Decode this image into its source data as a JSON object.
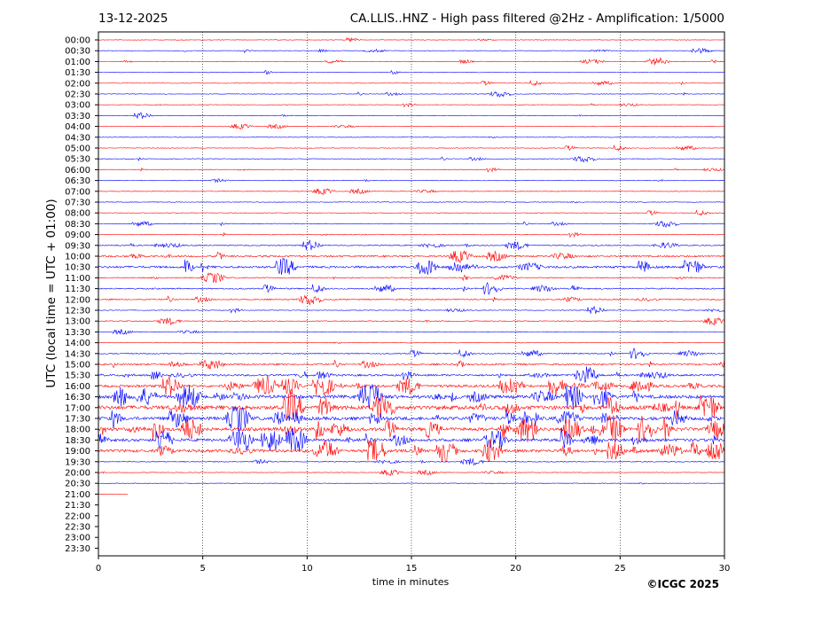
{
  "chart_data": {
    "type": "line",
    "title_left": "13-12-2025",
    "title_right": "CA.LLIS..HNZ - High pass filtered @2Hz - Amplification: 1/5000",
    "xlabel": "time in minutes",
    "ylabel": "UTC (local time = UTC + 01:00)",
    "copyright": "©ICGC 2025",
    "xlim": [
      0,
      30
    ],
    "x_ticks": [
      "0",
      "5",
      "10",
      "15",
      "20",
      "25",
      "30"
    ],
    "x_tick_values": [
      0,
      5,
      10,
      15,
      20,
      25,
      30
    ],
    "grid": "vertical dotted at 5 min",
    "trace_colors": [
      "#ff0000",
      "#0000ff"
    ],
    "rows": [
      {
        "label": "00:00",
        "level": 0.02,
        "end": 30
      },
      {
        "label": "00:30",
        "level": 0.02,
        "end": 30
      },
      {
        "label": "01:00",
        "level": 0.03,
        "end": 30
      },
      {
        "label": "01:30",
        "level": 0.02,
        "end": 30
      },
      {
        "label": "02:00",
        "level": 0.02,
        "end": 30
      },
      {
        "label": "02:30",
        "level": 0.02,
        "end": 30
      },
      {
        "label": "03:00",
        "level": 0.03,
        "end": 30
      },
      {
        "label": "03:30",
        "level": 0.02,
        "end": 30
      },
      {
        "label": "04:00",
        "level": 0.02,
        "end": 30
      },
      {
        "label": "04:30",
        "level": 0.03,
        "end": 30
      },
      {
        "label": "05:00",
        "level": 0.04,
        "end": 30
      },
      {
        "label": "05:30",
        "level": 0.04,
        "end": 30
      },
      {
        "label": "06:00",
        "level": 0.05,
        "end": 30
      },
      {
        "label": "06:30",
        "level": 0.04,
        "end": 30
      },
      {
        "label": "07:00",
        "level": 0.05,
        "end": 30
      },
      {
        "label": "07:30",
        "level": 0.05,
        "end": 30
      },
      {
        "label": "08:00",
        "level": 0.04,
        "end": 30
      },
      {
        "label": "08:30",
        "level": 0.06,
        "end": 30
      },
      {
        "label": "09:00",
        "level": 0.08,
        "end": 30
      },
      {
        "label": "09:30",
        "level": 0.15,
        "end": 30
      },
      {
        "label": "10:00",
        "level": 0.3,
        "end": 30
      },
      {
        "label": "10:30",
        "level": 0.4,
        "end": 30
      },
      {
        "label": "11:00",
        "level": 0.15,
        "end": 30
      },
      {
        "label": "11:30",
        "level": 0.2,
        "end": 30
      },
      {
        "label": "12:00",
        "level": 0.2,
        "end": 30
      },
      {
        "label": "12:30",
        "level": 0.06,
        "end": 30
      },
      {
        "label": "13:00",
        "level": 0.1,
        "end": 30
      },
      {
        "label": "13:30",
        "level": 0.05,
        "end": 30
      },
      {
        "label": "14:00",
        "level": 0.05,
        "end": 30
      },
      {
        "label": "14:30",
        "level": 0.15,
        "end": 30
      },
      {
        "label": "15:00",
        "level": 0.3,
        "end": 30
      },
      {
        "label": "15:30",
        "level": 0.35,
        "end": 30
      },
      {
        "label": "16:00",
        "level": 0.5,
        "end": 30
      },
      {
        "label": "16:30",
        "level": 0.7,
        "end": 30
      },
      {
        "label": "17:00",
        "level": 0.85,
        "end": 30
      },
      {
        "label": "17:30",
        "level": 0.7,
        "end": 30
      },
      {
        "label": "18:00",
        "level": 0.7,
        "end": 30
      },
      {
        "label": "18:30",
        "level": 0.6,
        "end": 30
      },
      {
        "label": "19:00",
        "level": 0.6,
        "end": 30
      },
      {
        "label": "19:30",
        "level": 0.1,
        "end": 30
      },
      {
        "label": "20:00",
        "level": 0.04,
        "end": 30
      },
      {
        "label": "20:30",
        "level": 0.03,
        "end": 30
      },
      {
        "label": "21:00",
        "level": 0.02,
        "end": 1.4
      },
      {
        "label": "21:30",
        "level": 0,
        "end": 0
      },
      {
        "label": "22:00",
        "level": 0,
        "end": 0
      },
      {
        "label": "22:30",
        "level": 0,
        "end": 0
      },
      {
        "label": "23:00",
        "level": 0,
        "end": 0
      },
      {
        "label": "23:30",
        "level": 0,
        "end": 0
      }
    ]
  }
}
